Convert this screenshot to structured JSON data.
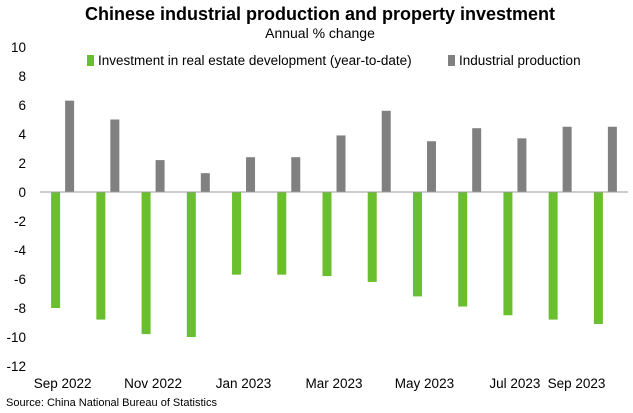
{
  "chart_data": {
    "type": "bar",
    "title": "Chinese industrial production and property investment",
    "subtitle": "Annual % change",
    "categories": [
      "Sep 2022",
      "Oct 2022",
      "Nov 2022",
      "Dec 2022",
      "Jan 2023",
      "Feb 2023",
      "Mar 2023",
      "Apr 2023",
      "May 2023",
      "Jun 2023",
      "Jul 2023",
      "Aug 2023",
      "Sep 2023"
    ],
    "x_tick_labels": [
      "Sep 2022",
      "Nov 2022",
      "Jan 2023",
      "Mar 2023",
      "May 2023",
      "Jul 2023",
      "Sep 2023"
    ],
    "series": [
      {
        "name": "Investment in real estate development (year-to-date)",
        "color": "#6abf2e",
        "values": [
          -8.0,
          -8.8,
          -9.8,
          -10.0,
          -5.7,
          -5.7,
          -5.8,
          -6.2,
          -7.2,
          -7.9,
          -8.5,
          -8.8,
          -9.1
        ]
      },
      {
        "name": "Industrial production",
        "color": "#808080",
        "values": [
          6.3,
          5.0,
          2.2,
          1.3,
          2.4,
          2.4,
          3.9,
          5.6,
          3.5,
          4.4,
          3.7,
          4.5,
          4.5
        ]
      }
    ],
    "ylim": [
      -12,
      10
    ],
    "y_ticks": [
      10,
      8,
      6,
      4,
      2,
      0,
      -2,
      -4,
      -6,
      -8,
      -10,
      -12
    ],
    "grid": false,
    "legend_position": "top",
    "source": "Source: China National Bureau of Statistics"
  }
}
